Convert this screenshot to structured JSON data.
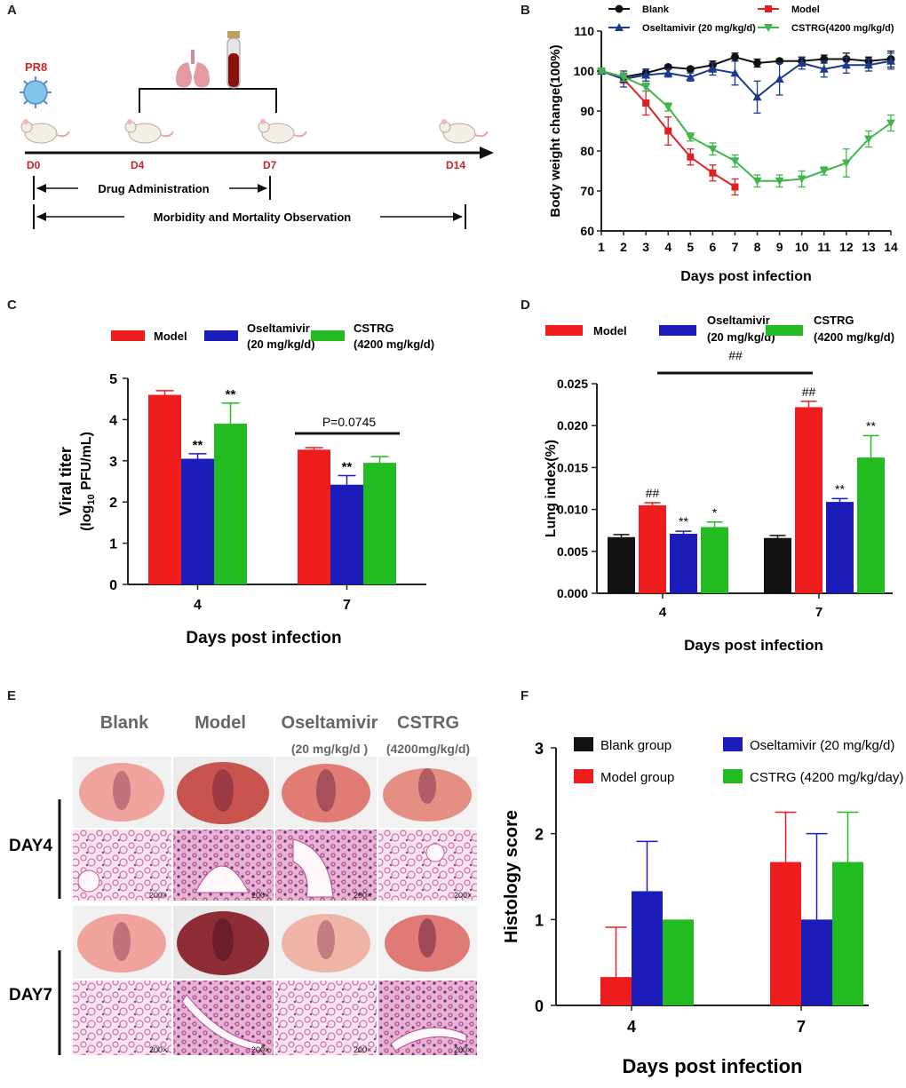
{
  "panels": {
    "a": {
      "letter": "A",
      "virus": "PR8",
      "days": [
        "D0",
        "D4",
        "D7",
        "D14"
      ],
      "drug_label": "Drug Administration",
      "observation_label": "Morbidity and Mortality Observation",
      "colors": {
        "accent": "#c8262c",
        "timeline": "#111111"
      }
    },
    "b": {
      "letter": "B"
    },
    "c": {
      "letter": "C"
    },
    "d": {
      "letter": "D"
    },
    "e": {
      "letter": "E",
      "columns": [
        "Blank",
        "Model",
        "Oseltamivir",
        "CSTRG"
      ],
      "column_doses": [
        "",
        "",
        "(20 mg/kg/d )",
        "(4200mg/kg/d)"
      ],
      "rows": [
        "DAY4",
        "DAY7"
      ],
      "scale_label": "200×"
    },
    "f": {
      "letter": "F"
    }
  },
  "chart_data": [
    {
      "id": "B",
      "type": "line",
      "title": "",
      "xlabel": "Days post infection",
      "ylabel": "Body weight change(100%)",
      "ylim": [
        60,
        110
      ],
      "yticks": [
        60,
        70,
        80,
        90,
        100,
        110
      ],
      "xticks": [
        1,
        2,
        3,
        4,
        5,
        6,
        7,
        8,
        9,
        10,
        11,
        12,
        13,
        14
      ],
      "legend": [
        "Blank",
        "Model",
        "Oseltamivir (20 mg/kg/d)",
        "CSTRG(4200 mg/kg/d)"
      ],
      "series": [
        {
          "name": "Blank",
          "color": "#111111",
          "marker": "circle",
          "x": [
            1,
            2,
            3,
            4,
            5,
            6,
            7,
            8,
            9,
            10,
            11,
            12,
            13,
            14
          ],
          "values": [
            100,
            98.5,
            99.5,
            101,
            100.5,
            101.5,
            103.5,
            102,
            102.5,
            102.5,
            103,
            103,
            102.5,
            103
          ],
          "err": [
            0.5,
            1,
            1,
            0.5,
            0.5,
            1,
            1,
            1,
            0.5,
            1,
            1,
            1.5,
            1,
            2
          ]
        },
        {
          "name": "Model",
          "color": "#e02020",
          "marker": "square",
          "x": [
            1,
            2,
            3,
            4,
            5,
            6,
            7
          ],
          "values": [
            100,
            98,
            92,
            85,
            78.5,
            74.5,
            71
          ],
          "err": [
            0.5,
            1,
            3,
            3.5,
            2,
            2,
            2
          ]
        },
        {
          "name": "Oseltamivir (20 mg/kg/d)",
          "color": "#1a3a8c",
          "marker": "triangle-up",
          "x": [
            1,
            2,
            3,
            4,
            5,
            6,
            7,
            8,
            9,
            10,
            11,
            12,
            13,
            14
          ],
          "values": [
            100,
            98,
            99,
            99.5,
            98.5,
            100.5,
            99.5,
            93.5,
            98,
            102,
            100.5,
            101.5,
            101.5,
            102.5
          ],
          "err": [
            0.5,
            2,
            1.5,
            1,
            1,
            1.5,
            3,
            4,
            4,
            1.5,
            2,
            2,
            1.5,
            2
          ]
        },
        {
          "name": "CSTRG(4200 mg/kg/d)",
          "color": "#3fb54a",
          "marker": "triangle-down",
          "x": [
            1,
            2,
            3,
            4,
            5,
            6,
            7,
            8,
            9,
            10,
            11,
            12,
            13,
            14
          ],
          "values": [
            100,
            98.5,
            96,
            91,
            83.5,
            80.5,
            77.5,
            72.5,
            72.5,
            73,
            75,
            77,
            83,
            87
          ],
          "err": [
            0.5,
            1,
            1,
            1,
            1,
            1.5,
            1.5,
            1.5,
            1.5,
            2,
            1,
            3.5,
            2,
            2
          ]
        }
      ]
    },
    {
      "id": "C",
      "type": "bar",
      "xlabel": "Days post infection",
      "ylabel": "Viral titer",
      "ylabel2": "(log",
      "ylabel_sub": "10",
      "ylabel_rest": " PFU/mL)",
      "ylim": [
        0,
        5
      ],
      "yticks": [
        0,
        1,
        2,
        3,
        4,
        5
      ],
      "categories": [
        "4",
        "7"
      ],
      "legend": [
        {
          "name": "Model",
          "dose": ""
        },
        {
          "name": "Oseltamivir",
          "dose": "(20 mg/kg/d)"
        },
        {
          "name": "CSTRG",
          "dose": "(4200 mg/kg/d)"
        }
      ],
      "series": [
        {
          "name": "Model",
          "color": "#ee1c1c",
          "values": [
            4.6,
            3.27
          ],
          "err": [
            0.1,
            0.05
          ],
          "marks": [
            "",
            ""
          ]
        },
        {
          "name": "Oseltamivir",
          "color": "#1c1cbb",
          "values": [
            3.05,
            2.42
          ],
          "err": [
            0.12,
            0.22
          ],
          "marks": [
            "**",
            "**"
          ]
        },
        {
          "name": "CSTRG",
          "color": "#22bb22",
          "values": [
            3.9,
            2.95
          ],
          "err": [
            0.5,
            0.15
          ],
          "marks": [
            "**",
            ""
          ]
        }
      ],
      "annotation": "P=0.0745"
    },
    {
      "id": "D",
      "type": "bar",
      "xlabel": "Days post infection",
      "ylabel": "Lung index(%)",
      "ylim": [
        0,
        0.025
      ],
      "yticks": [
        "0.000",
        "0.005",
        "0.010",
        "0.015",
        "0.020",
        "0.025"
      ],
      "categories": [
        "4",
        "7"
      ],
      "legend": [
        {
          "name": "Model",
          "dose": ""
        },
        {
          "name": "Oseltamivir",
          "dose": "(20 mg/kg/d)"
        },
        {
          "name": "CSTRG",
          "dose": "(4200 mg/kg/d)"
        }
      ],
      "series": [
        {
          "name": "Blank",
          "color": "#111111",
          "values": [
            0.0067,
            0.0066
          ],
          "err": [
            0.0003,
            0.0003
          ],
          "marks": [
            "",
            ""
          ]
        },
        {
          "name": "Model",
          "color": "#ee1c1c",
          "values": [
            0.0105,
            0.0222
          ],
          "err": [
            0.0003,
            0.0007
          ],
          "marks": [
            "##",
            "##"
          ]
        },
        {
          "name": "Oseltamivir",
          "color": "#1c1cbb",
          "values": [
            0.0071,
            0.0109
          ],
          "err": [
            0.0003,
            0.0004
          ],
          "marks": [
            "**",
            "**"
          ]
        },
        {
          "name": "CSTRG",
          "color": "#22bb22",
          "values": [
            0.0079,
            0.0162
          ],
          "err": [
            0.0006,
            0.0026
          ],
          "marks": [
            "*",
            "**"
          ]
        }
      ],
      "annotation": "##"
    },
    {
      "id": "F",
      "type": "bar",
      "xlabel": "Days post infection",
      "ylabel": "Histology score",
      "ylim": [
        0,
        3
      ],
      "yticks": [
        0,
        1,
        2,
        3
      ],
      "categories": [
        "4",
        "7"
      ],
      "legend": [
        "Blank group",
        "Oseltamivir (20 mg/kg/d)",
        "Model group",
        "CSTRG (4200 mg/kg/day)"
      ],
      "series": [
        {
          "name": "Blank group",
          "color": "#111111",
          "values": [
            0,
            0
          ],
          "err": [
            0,
            0
          ]
        },
        {
          "name": "Model group",
          "color": "#ee1c1c",
          "values": [
            0.33,
            1.67
          ],
          "err": [
            0.58,
            0.58
          ]
        },
        {
          "name": "Oseltamivir (20 mg/kg/d)",
          "color": "#1c1cbb",
          "values": [
            1.33,
            1.0
          ],
          "err": [
            0.58,
            1.0
          ]
        },
        {
          "name": "CSTRG (4200 mg/kg/day)",
          "color": "#22bb22",
          "values": [
            1.0,
            1.67
          ],
          "err": [
            0,
            0.58
          ]
        }
      ]
    }
  ]
}
